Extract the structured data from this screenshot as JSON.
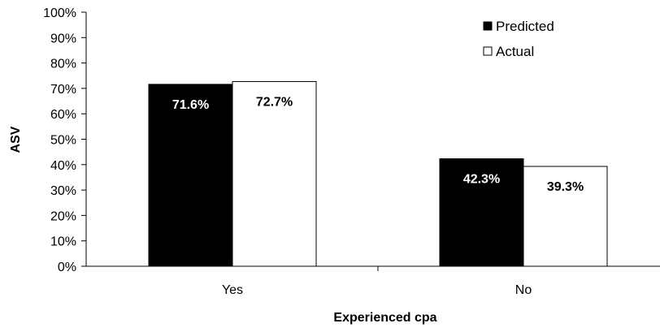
{
  "chart_data": {
    "type": "bar",
    "title": "",
    "xlabel": "Experienced cpa",
    "ylabel": "ASV",
    "categories": [
      "Yes",
      "No"
    ],
    "ylim": [
      0,
      100
    ],
    "yticks": [
      "0%",
      "10%",
      "20%",
      "30%",
      "40%",
      "50%",
      "60%",
      "70%",
      "80%",
      "90%",
      "100%"
    ],
    "grid": false,
    "legend": "top-right",
    "series": [
      {
        "name": "Predicted",
        "values": [
          71.6,
          42.3
        ],
        "labels": [
          "71.6%",
          "42.3%"
        ],
        "color": "#000000",
        "label_color": "#ffffff"
      },
      {
        "name": "Actual",
        "values": [
          72.7,
          39.3
        ],
        "labels": [
          "72.7%",
          "39.3%"
        ],
        "color": "#ffffff",
        "label_color": "#000000"
      }
    ]
  }
}
